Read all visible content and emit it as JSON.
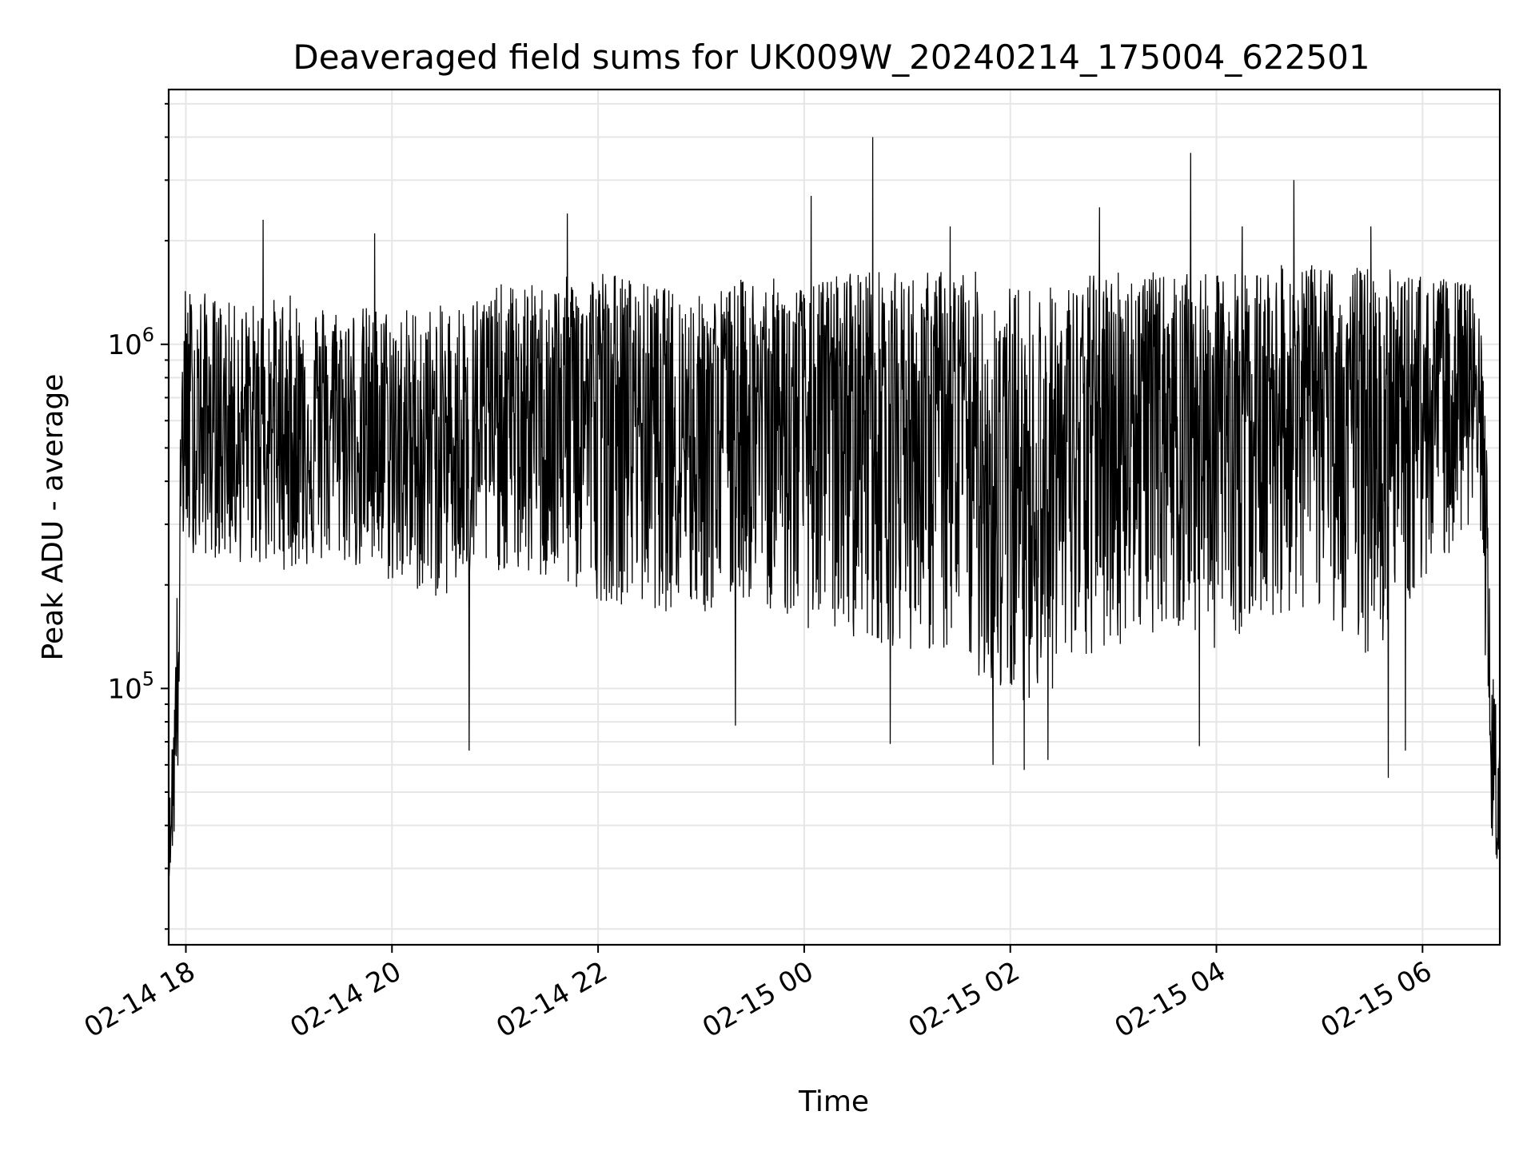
{
  "chart_data": {
    "type": "line",
    "title": "Deaveraged field sums for UK009W_20240214_175004_622501",
    "xlabel": "Time",
    "ylabel": "Peak ADU - average",
    "x_axis": {
      "kind": "datetime",
      "range": [
        "2024-02-14 17:50",
        "2024-02-15 06:45"
      ],
      "ticks": [
        {
          "value": "2024-02-14 18:00",
          "label": "02-14 18"
        },
        {
          "value": "2024-02-14 20:00",
          "label": "02-14 20"
        },
        {
          "value": "2024-02-14 22:00",
          "label": "02-14 22"
        },
        {
          "value": "2024-02-15 00:00",
          "label": "02-15 00"
        },
        {
          "value": "2024-02-15 02:00",
          "label": "02-15 02"
        },
        {
          "value": "2024-02-15 04:00",
          "label": "02-15 04"
        },
        {
          "value": "2024-02-15 06:00",
          "label": "02-15 06"
        }
      ]
    },
    "y_axis": {
      "scale": "log",
      "range": [
        18000,
        5500000
      ],
      "ticks": [
        {
          "value": 100000,
          "base": "10",
          "exp": "5"
        },
        {
          "value": 1000000,
          "base": "10",
          "exp": "6"
        }
      ]
    },
    "grid": true,
    "legend": "none",
    "series": [
      {
        "color": "#000000",
        "x": [
          "2024-02-14 17:50",
          "2024-02-14 17:53",
          "2024-02-14 17:56",
          "2024-02-14 17:58",
          "2024-02-14 18:00",
          "2024-02-14 18:30",
          "2024-02-14 19:00",
          "2024-02-14 19:30",
          "2024-02-14 20:00",
          "2024-02-14 20:30",
          "2024-02-14 21:00",
          "2024-02-14 21:30",
          "2024-02-14 22:00",
          "2024-02-14 22:30",
          "2024-02-14 23:00",
          "2024-02-14 23:30",
          "2024-02-15 00:00",
          "2024-02-15 00:30",
          "2024-02-15 01:00",
          "2024-02-15 01:30",
          "2024-02-15 02:00",
          "2024-02-15 02:30",
          "2024-02-15 03:00",
          "2024-02-15 03:30",
          "2024-02-15 04:00",
          "2024-02-15 04:30",
          "2024-02-15 05:00",
          "2024-02-15 05:30",
          "2024-02-15 06:00",
          "2024-02-15 06:30",
          "2024-02-15 06:36",
          "2024-02-15 06:40",
          "2024-02-15 06:45"
        ],
        "y": [
          30000,
          60000,
          150000,
          700000,
          550000,
          600000,
          560000,
          620000,
          500000,
          520000,
          600000,
          680000,
          720000,
          700000,
          620000,
          680000,
          600000,
          700000,
          650000,
          550000,
          400000,
          450000,
          700000,
          720000,
          650000,
          720000,
          700000,
          650000,
          720000,
          750000,
          400000,
          60000,
          45000
        ],
        "band_low": [
          28000,
          35000,
          60000,
          250000,
          250000,
          230000,
          220000,
          230000,
          200000,
          180000,
          220000,
          200000,
          180000,
          170000,
          160000,
          180000,
          150000,
          140000,
          130000,
          120000,
          90000,
          100000,
          130000,
          150000,
          130000,
          160000,
          170000,
          120000,
          200000,
          300000,
          150000,
          35000,
          30000
        ],
        "band_high": [
          40000,
          100000,
          300000,
          1400000,
          1500000,
          1300000,
          1400000,
          1300000,
          1300000,
          1300000,
          1500000,
          1500000,
          1700000,
          1500000,
          1400000,
          1600000,
          1500000,
          1700000,
          1600000,
          1700000,
          1500000,
          1500000,
          1700000,
          1600000,
          1600000,
          1700000,
          1700000,
          1700000,
          1600000,
          1500000,
          1000000,
          120000,
          80000
        ],
        "peaks": [
          {
            "x": "2024-02-14 18:45",
            "y": 2300000
          },
          {
            "x": "2024-02-14 19:50",
            "y": 2100000
          },
          {
            "x": "2024-02-14 21:42",
            "y": 2400000
          },
          {
            "x": "2024-02-15 00:04",
            "y": 2700000
          },
          {
            "x": "2024-02-15 00:40",
            "y": 4000000
          },
          {
            "x": "2024-02-15 01:25",
            "y": 2200000
          },
          {
            "x": "2024-02-15 02:52",
            "y": 2500000
          },
          {
            "x": "2024-02-15 03:45",
            "y": 3600000
          },
          {
            "x": "2024-02-15 04:15",
            "y": 2200000
          },
          {
            "x": "2024-02-15 04:45",
            "y": 3000000
          },
          {
            "x": "2024-02-15 05:30",
            "y": 2200000
          }
        ],
        "troughs": [
          {
            "x": "2024-02-14 20:45",
            "y": 66000
          },
          {
            "x": "2024-02-14 23:20",
            "y": 78000
          },
          {
            "x": "2024-02-15 00:50",
            "y": 69000
          },
          {
            "x": "2024-02-15 01:50",
            "y": 60000
          },
          {
            "x": "2024-02-15 02:08",
            "y": 58000
          },
          {
            "x": "2024-02-15 02:22",
            "y": 62000
          },
          {
            "x": "2024-02-15 03:50",
            "y": 68000
          },
          {
            "x": "2024-02-15 05:40",
            "y": 55000
          },
          {
            "x": "2024-02-15 05:50",
            "y": 66000
          }
        ]
      }
    ]
  }
}
